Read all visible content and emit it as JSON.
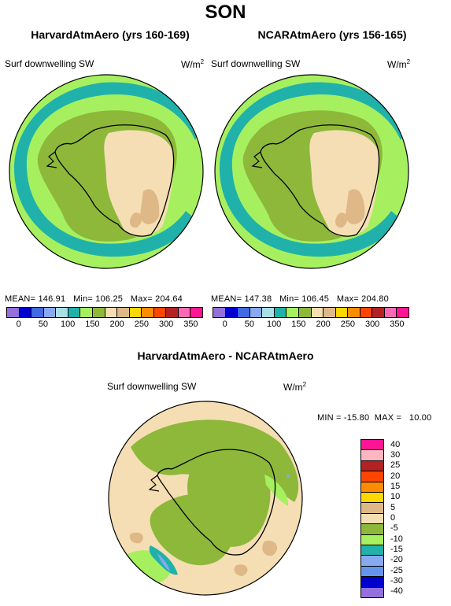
{
  "season": "SON",
  "panels": [
    {
      "title": "HarvardAtmAero (yrs 160-169)",
      "variable": "Surf downwelling SW",
      "unit_base": "W/m",
      "unit_exp": "2",
      "stats": "MEAN= 146.91   Min= 106.25   Max= 204.64"
    },
    {
      "title": "NCARAtmAero (yrs 156-165)",
      "variable": "Surf downwelling SW",
      "unit_base": "W/m",
      "unit_exp": "2",
      "stats": "MEAN= 147.38   Min= 106.45   Max= 204.80"
    }
  ],
  "diff": {
    "title": "HarvardAtmAero - NCARAtmAero",
    "variable": "Surf downwelling SW",
    "unit_base": "W/m",
    "unit_exp": "2",
    "minmax": "MIN = -15.80  MAX =   10.00"
  },
  "abs_colorbar": {
    "colors": [
      "#9370db",
      "#0000cd",
      "#4169e1",
      "#87a9f0",
      "#a8e0e6",
      "#20b2aa",
      "#a6f060",
      "#8db83a",
      "#f5deb3",
      "#deb887",
      "#ffd700",
      "#ff8c00",
      "#ff4500",
      "#b22222",
      "#ff69b4",
      "#ff1493"
    ],
    "labels": [
      "0",
      "50",
      "100",
      "150",
      "200",
      "250",
      "300",
      "350"
    ]
  },
  "diff_colorbar": {
    "colors": [
      "#ff1493",
      "#ffb6c1",
      "#b22222",
      "#ff4500",
      "#ff8c00",
      "#ffd700",
      "#deb887",
      "#f5deb3",
      "#8db83a",
      "#a6f060",
      "#20b2aa",
      "#87a9f0",
      "#6495ed",
      "#0000cd",
      "#9370db"
    ],
    "labels": [
      "40",
      "30",
      "25",
      "20",
      "15",
      "10",
      "5",
      "0",
      "-5",
      "-10",
      "-15",
      "-20",
      "-25",
      "-30",
      "-40"
    ]
  },
  "map_colors": {
    "ocean_main": "#a6f060",
    "band": "#20b2aa",
    "band_inner": "#87a9f0",
    "mid": "#8db83a",
    "high": "#f5deb3",
    "higher": "#deb887",
    "coast": "#000000"
  }
}
